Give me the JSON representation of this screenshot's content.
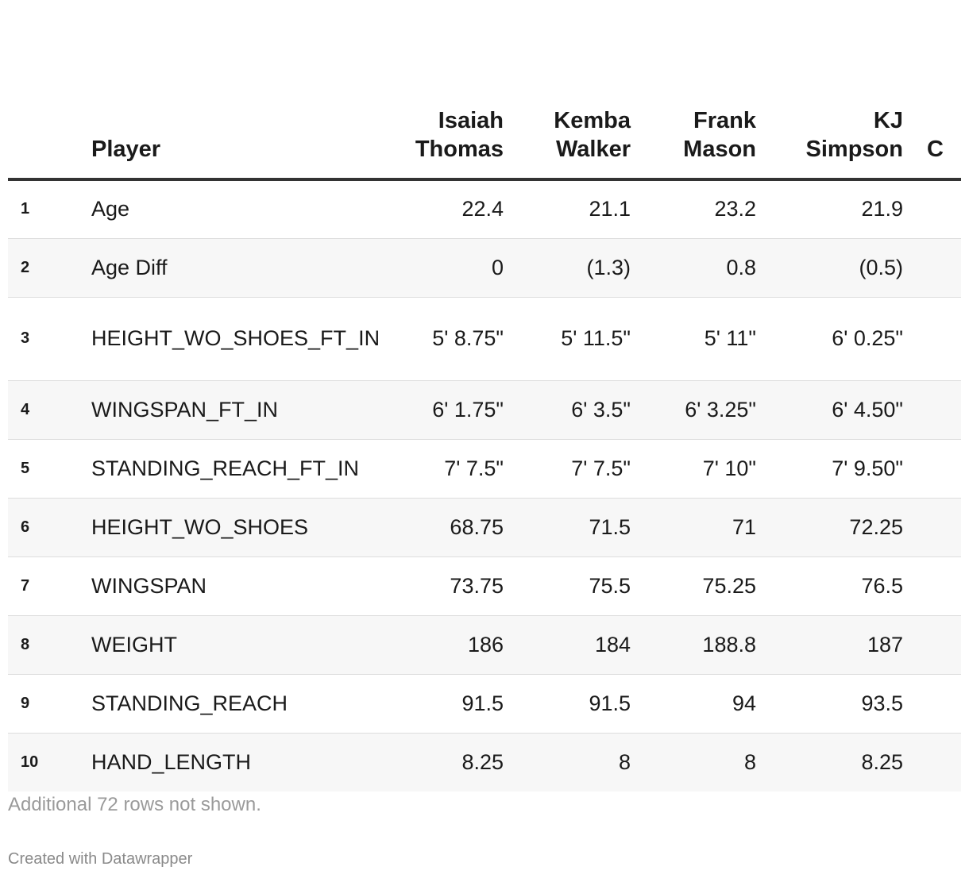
{
  "table": {
    "headers": {
      "player": "Player",
      "players": [
        {
          "first": "Isaiah",
          "last": "Thomas"
        },
        {
          "first": "Kemba",
          "last": "Walker"
        },
        {
          "first": "Frank",
          "last": "Mason"
        },
        {
          "first": "KJ",
          "last": "Simpson"
        }
      ],
      "partial_column": "C"
    },
    "rows": [
      {
        "rank": "1",
        "label": "Age",
        "values": [
          "22.4",
          "21.1",
          "23.2",
          "21.9"
        ]
      },
      {
        "rank": "2",
        "label": "Age Diff",
        "values": [
          "0",
          "(1.3)",
          "0.8",
          "(0.5)"
        ]
      },
      {
        "rank": "3",
        "label": "HEIGHT_WO_SHOES_FT_IN",
        "values": [
          "5' 8.75\"",
          "5' 11.5\"",
          "5' 11\"",
          "6' 0.25\""
        ]
      },
      {
        "rank": "4",
        "label": "WINGSPAN_FT_IN",
        "values": [
          "6' 1.75\"",
          "6' 3.5\"",
          "6' 3.25\"",
          "6' 4.50\""
        ]
      },
      {
        "rank": "5",
        "label": "STANDING_REACH_FT_IN",
        "values": [
          "7' 7.5\"",
          "7' 7.5\"",
          "7' 10\"",
          "7' 9.50\""
        ]
      },
      {
        "rank": "6",
        "label": "HEIGHT_WO_SHOES",
        "values": [
          "68.75",
          "71.5",
          "71",
          "72.25"
        ]
      },
      {
        "rank": "7",
        "label": "WINGSPAN",
        "values": [
          "73.75",
          "75.5",
          "75.25",
          "76.5"
        ]
      },
      {
        "rank": "8",
        "label": "WEIGHT",
        "values": [
          "186",
          "184",
          "188.8",
          "187"
        ]
      },
      {
        "rank": "9",
        "label": "STANDING_REACH",
        "values": [
          "91.5",
          "91.5",
          "94",
          "93.5"
        ]
      },
      {
        "rank": "10",
        "label": "HAND_LENGTH",
        "values": [
          "8.25",
          "8",
          "8",
          "8.25"
        ]
      }
    ]
  },
  "footer": {
    "note": "Additional 72 rows not shown.",
    "credit": "Created with Datawrapper"
  }
}
